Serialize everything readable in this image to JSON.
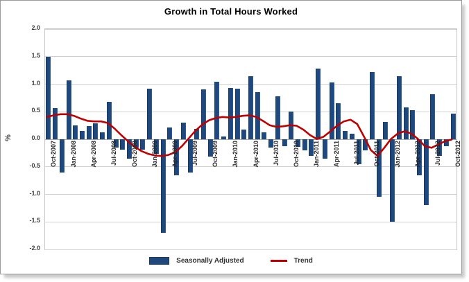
{
  "chart_data": {
    "type": "bar",
    "title": "Growth in Total Hours Worked",
    "xlabel": "",
    "ylabel": "%",
    "ylim": [
      -2.0,
      2.0
    ],
    "ytick_step": 0.5,
    "ytick_labels": [
      "2.0",
      "1.5",
      "1.0",
      "0.5",
      "0.0",
      "-0.5",
      "-1.0",
      "-1.5",
      "-2.0"
    ],
    "grid": true,
    "legend_position": "bottom",
    "months": [
      "Oct-2007",
      "Nov-2007",
      "Dec-2007",
      "Jan-2008",
      "Feb-2008",
      "Mar-2008",
      "Apr-2008",
      "May-2008",
      "Jun-2008",
      "Jul-2008",
      "Aug-2008",
      "Sep-2008",
      "Oct-2008",
      "Nov-2008",
      "Dec-2008",
      "Jan-2009",
      "Feb-2009",
      "Mar-2009",
      "Apr-2009",
      "May-2009",
      "Jun-2009",
      "Jul-2009",
      "Aug-2009",
      "Sep-2009",
      "Oct-2009",
      "Nov-2009",
      "Dec-2009",
      "Jan-2010",
      "Feb-2010",
      "Mar-2010",
      "Apr-2010",
      "May-2010",
      "Jun-2010",
      "Jul-2010",
      "Aug-2010",
      "Sep-2010",
      "Oct-2010",
      "Nov-2010",
      "Dec-2010",
      "Jan-2011",
      "Feb-2011",
      "Mar-2011",
      "Apr-2011",
      "May-2011",
      "Jun-2011",
      "Jul-2011",
      "Aug-2011",
      "Sep-2011",
      "Oct-2011",
      "Nov-2011",
      "Dec-2011",
      "Jan-2012",
      "Feb-2012",
      "Mar-2012",
      "Apr-2012",
      "May-2012",
      "Jun-2012",
      "Jul-2012",
      "Aug-2012",
      "Sep-2012",
      "Oct-2012"
    ],
    "xtick_labels": [
      "Oct-2007",
      "Jan-2008",
      "Apr-2008",
      "Jul-2008",
      "Oct-2008",
      "Jan-2009",
      "Apr-2009",
      "Jul-2009",
      "Oct-2009",
      "Jan-2010",
      "Apr-2010",
      "Jul-2010",
      "Oct-2010",
      "Jan-2011",
      "Apr-2011",
      "Jul-2011",
      "Oct-2011",
      "Jan-2012",
      "Apr-2012",
      "Jul-2012",
      "Oct-2012"
    ],
    "xtick_every_n_months": 3,
    "series": [
      {
        "name": "Seasonally Adjusted",
        "type": "bar",
        "color": "#1F497D",
        "values": [
          1.5,
          0.57,
          -0.6,
          1.07,
          0.25,
          0.15,
          0.24,
          0.29,
          0.13,
          0.68,
          -0.15,
          -0.19,
          -0.35,
          -0.15,
          -0.19,
          0.92,
          -0.26,
          -1.7,
          0.22,
          -0.65,
          0.3,
          -0.6,
          0.19,
          0.91,
          -0.32,
          1.04,
          0.05,
          0.93,
          0.92,
          0.17,
          1.14,
          0.86,
          0.13,
          -0.15,
          0.78,
          -0.13,
          0.5,
          -0.14,
          -0.2,
          -0.3,
          1.28,
          -0.35,
          1.03,
          0.65,
          0.15,
          0.1,
          -0.45,
          -0.2,
          1.22,
          -1.05,
          0.32,
          -1.5,
          1.15,
          0.58,
          0.53,
          -0.65,
          -1.2,
          0.82,
          -0.3,
          -0.12,
          0.47
        ]
      },
      {
        "name": "Trend",
        "type": "line",
        "color": "#C00000",
        "values": [
          0.38,
          0.41,
          0.43,
          0.43,
          0.4,
          0.35,
          0.31,
          0.3,
          0.3,
          0.27,
          0.17,
          0.05,
          -0.06,
          -0.16,
          -0.24,
          -0.29,
          -0.32,
          -0.33,
          -0.31,
          -0.26,
          -0.15,
          -0.01,
          0.13,
          0.24,
          0.32,
          0.36,
          0.38,
          0.37,
          0.38,
          0.4,
          0.41,
          0.38,
          0.31,
          0.23,
          0.2,
          0.21,
          0.23,
          0.22,
          0.15,
          0.05,
          -0.02,
          0.02,
          0.12,
          0.22,
          0.3,
          0.33,
          0.25,
          0.02,
          -0.22,
          -0.33,
          -0.18,
          -0.02,
          0.08,
          0.12,
          0.08,
          -0.02,
          -0.15,
          -0.18,
          -0.12,
          -0.06,
          -0.03
        ]
      }
    ]
  },
  "colors": {
    "bar_fill": "#1F497D",
    "bar_border": "#17375E",
    "trend_line": "#C00000",
    "gridline": "#d0d0d0",
    "frame_border": "#9a9a9a",
    "text": "#3f3f3f"
  }
}
